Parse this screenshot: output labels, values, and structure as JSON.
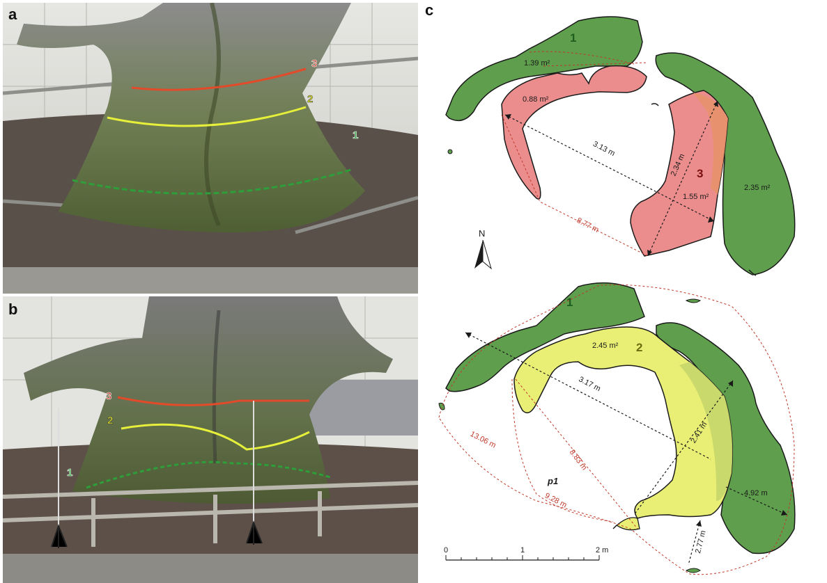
{
  "panels": {
    "a": {
      "letter": "a",
      "rings": [
        "3",
        "2",
        "1"
      ]
    },
    "b": {
      "letter": "b",
      "rings": [
        "3",
        "2",
        "1"
      ]
    },
    "c": {
      "letter": "c"
    }
  },
  "map_top": {
    "section_labels": [
      "1",
      "3"
    ],
    "areas": [
      "1.39 m²",
      "0.88 m²",
      "1.55 m²",
      "2.35 m²"
    ],
    "distances": [
      "3.13 m",
      "2.34 m"
    ],
    "perimeter": "8.77 m",
    "north": "N"
  },
  "map_bottom": {
    "section_labels": [
      "1",
      "2"
    ],
    "areas": [
      "2.45 m²"
    ],
    "distances": [
      "3.17 m",
      "2.41 m",
      "4.92 m",
      "2.77 m"
    ],
    "perimeters": [
      "13.06 m",
      "8.83 m",
      "9.28 m"
    ],
    "point": "p1"
  },
  "scale": {
    "ticks": [
      "0",
      "1",
      "2 m"
    ]
  },
  "colors": {
    "green": "#5e9e4c",
    "red": "#ec8d8d",
    "yellow": "#e9ee74",
    "dim_red": "#c0392b"
  }
}
